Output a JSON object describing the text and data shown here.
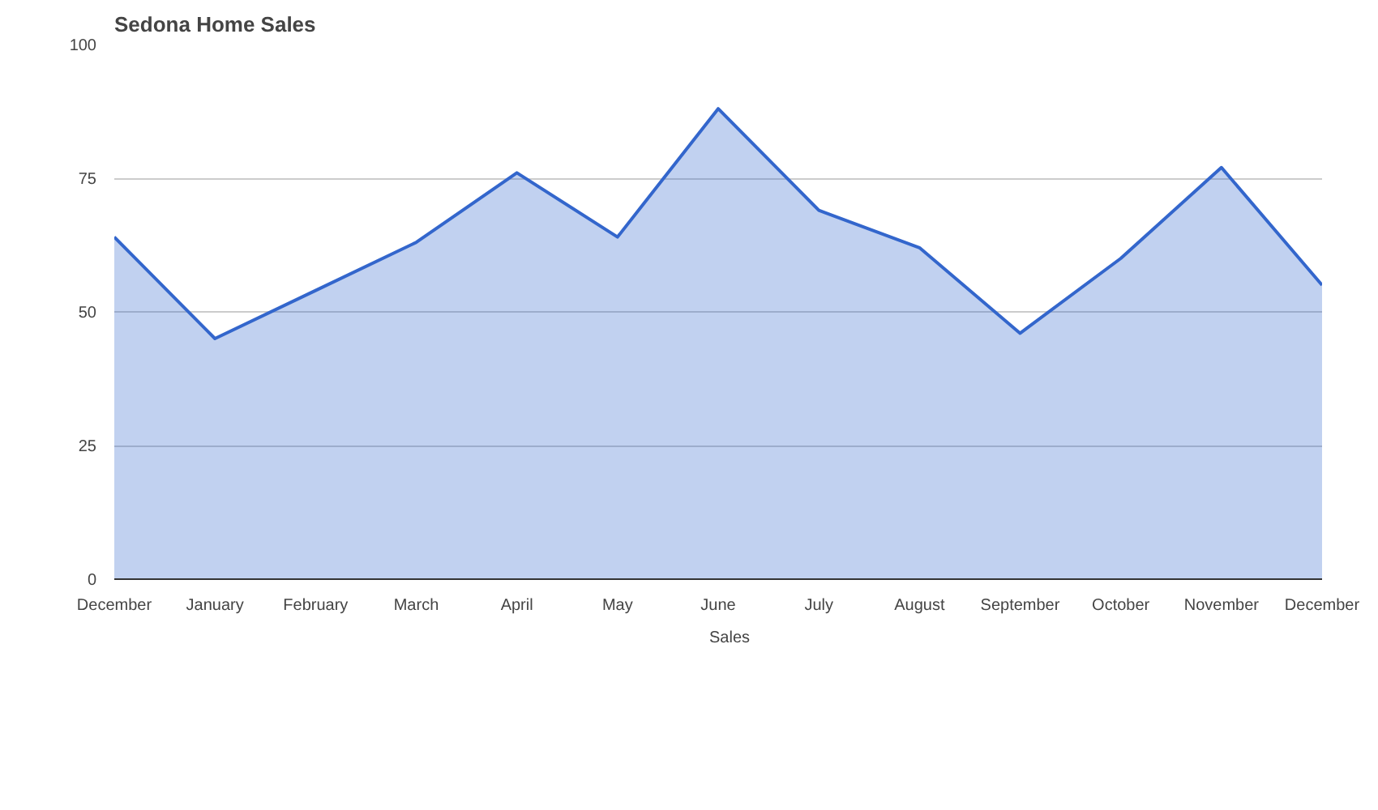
{
  "chart_data": {
    "type": "area",
    "title": "Sedona Home Sales",
    "categories": [
      "December",
      "January",
      "February",
      "March",
      "April",
      "May",
      "June",
      "July",
      "August",
      "September",
      "October",
      "November",
      "December"
    ],
    "series": [
      {
        "name": "Sales",
        "color": "#3366cc",
        "values": [
          64,
          45,
          54,
          63,
          76,
          64,
          88,
          69,
          62,
          46,
          60,
          77,
          55
        ]
      }
    ],
    "ylim": [
      0,
      100
    ],
    "yticks": [
      0,
      25,
      50,
      75,
      100
    ],
    "grid": "y",
    "legend": "bottom"
  }
}
